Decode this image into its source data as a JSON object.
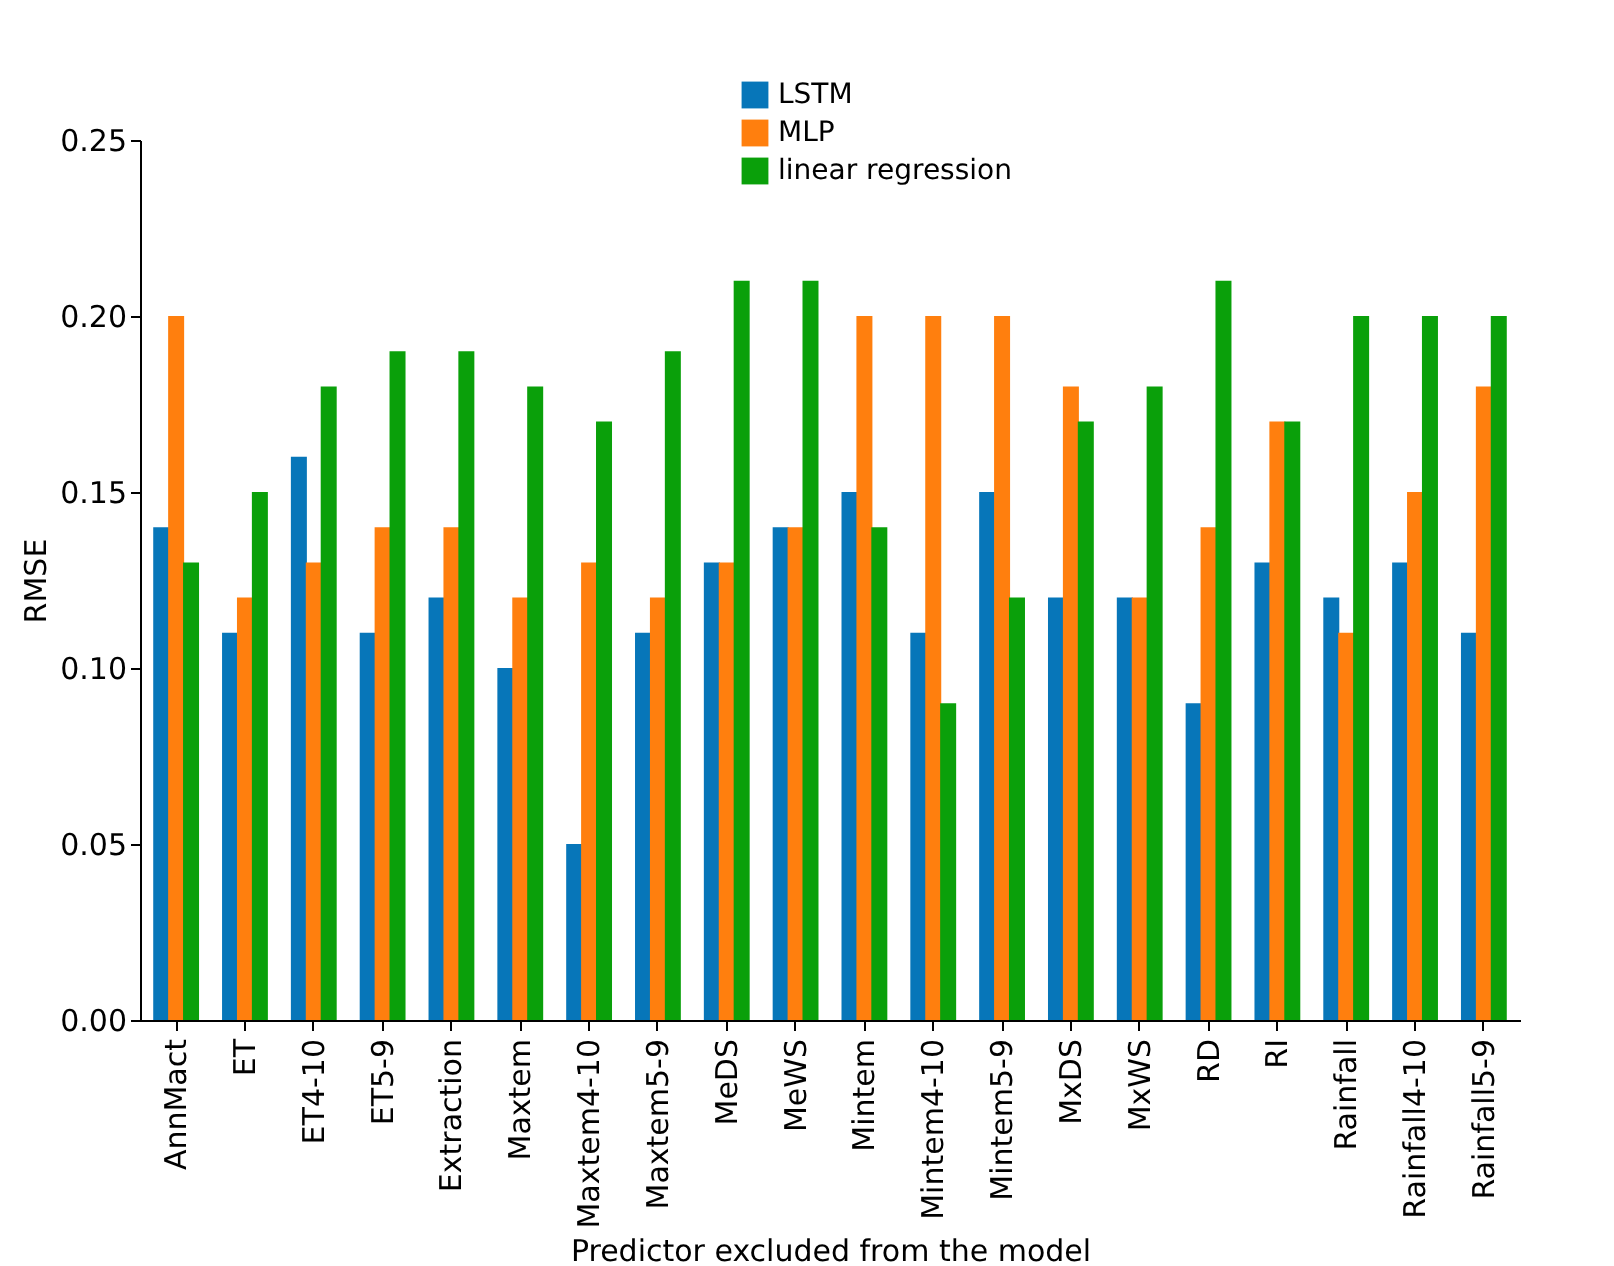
{
  "chart_data": {
    "type": "bar",
    "xlabel": "Predictor excluded from the model",
    "ylabel": "RMSE",
    "categories": [
      "AnnMact",
      "ET",
      "ET4-10",
      "ET5-9",
      "Extraction",
      "Maxtem",
      "Maxtem4-10",
      "Maxtem5-9",
      "MeDS",
      "MeWS",
      "Mintem",
      "Mintem4-10",
      "Mintem5-9",
      "MxDS",
      "MxWS",
      "RD",
      "RI",
      "Rainfall",
      "Rainfall4-10",
      "Rainfall5-9"
    ],
    "series": [
      {
        "name": "LSTM",
        "color": "#0776b9",
        "values": [
          0.14,
          0.11,
          0.16,
          0.11,
          0.12,
          0.1,
          0.05,
          0.11,
          0.13,
          0.14,
          0.15,
          0.11,
          0.15,
          0.12,
          0.12,
          0.09,
          0.13,
          0.12,
          0.13,
          0.11
        ]
      },
      {
        "name": "MLP",
        "color": "#ff7f0e",
        "values": [
          0.2,
          0.12,
          0.13,
          0.14,
          0.14,
          0.12,
          0.13,
          0.12,
          0.13,
          0.14,
          0.2,
          0.2,
          0.2,
          0.18,
          0.12,
          0.14,
          0.17,
          0.11,
          0.15,
          0.18
        ]
      },
      {
        "name": "linear regression",
        "color": "#0aa00a",
        "values": [
          0.13,
          0.15,
          0.18,
          0.19,
          0.19,
          0.18,
          0.17,
          0.19,
          0.21,
          0.21,
          0.14,
          0.09,
          0.12,
          0.17,
          0.18,
          0.21,
          0.17,
          0.2,
          0.2,
          0.2
        ]
      }
    ],
    "ylim": [
      0,
      0.25
    ],
    "yticks": [
      {
        "value": 0,
        "label": "0.00"
      },
      0.05,
      {
        "value": 0.1,
        "label": "0.10"
      },
      0.15,
      {
        "value": 0.2,
        "label": "0.20"
      },
      0.25
    ],
    "grid": false,
    "legend": "top"
  }
}
